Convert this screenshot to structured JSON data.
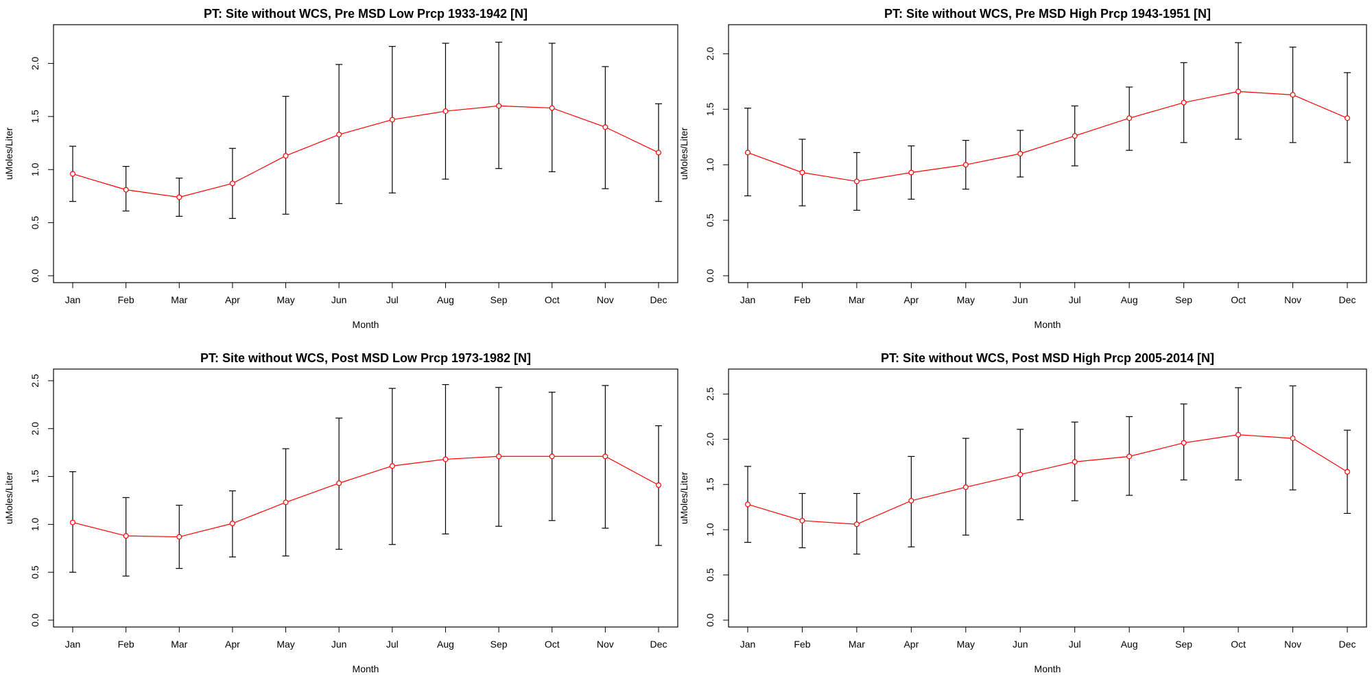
{
  "chart_data": [
    {
      "type": "line",
      "title": "PT: Site without WCS, Pre MSD Low Prcp 1933-1942 [N]",
      "xlabel": "Month",
      "ylabel": "uMoles/Liter",
      "categories": [
        "Jan",
        "Feb",
        "Mar",
        "Apr",
        "May",
        "Jun",
        "Jul",
        "Aug",
        "Sep",
        "Oct",
        "Nov",
        "Dec"
      ],
      "ylim": [
        0,
        2.3
      ],
      "yticks": [
        0.0,
        0.5,
        1.0,
        1.5,
        2.0
      ],
      "ytick_labels": [
        "0.0",
        "0.5",
        "1.0",
        "1.5",
        "2.0"
      ],
      "series": [
        {
          "color": "#ff0000",
          "values": [
            0.96,
            0.81,
            0.74,
            0.87,
            1.13,
            1.33,
            1.47,
            1.55,
            1.6,
            1.58,
            1.4,
            1.16
          ],
          "error_low": [
            0.7,
            0.61,
            0.56,
            0.54,
            0.58,
            0.68,
            0.78,
            0.91,
            1.01,
            0.98,
            0.82,
            0.7
          ],
          "error_high": [
            1.22,
            1.03,
            0.92,
            1.2,
            1.69,
            1.99,
            2.16,
            2.19,
            2.2,
            2.19,
            1.97,
            1.62
          ]
        }
      ],
      "grid": false,
      "legend": "none"
    },
    {
      "type": "line",
      "title": "PT: Site without WCS, Pre MSD High Prcp 1943-1951 [N]",
      "xlabel": "Month",
      "ylabel": "uMoles/Liter",
      "categories": [
        "Jan",
        "Feb",
        "Mar",
        "Apr",
        "May",
        "Jun",
        "Jul",
        "Aug",
        "Sep",
        "Oct",
        "Nov",
        "Dec"
      ],
      "ylim": [
        0,
        2.2
      ],
      "yticks": [
        0.0,
        0.5,
        1.0,
        1.5,
        2.0
      ],
      "ytick_labels": [
        "0.0",
        "0.5",
        "1.0",
        "1.5",
        "2.0"
      ],
      "series": [
        {
          "color": "#ff0000",
          "values": [
            1.11,
            0.93,
            0.85,
            0.93,
            1.0,
            1.1,
            1.26,
            1.42,
            1.56,
            1.66,
            1.63,
            1.42
          ],
          "error_low": [
            0.72,
            0.63,
            0.59,
            0.69,
            0.78,
            0.89,
            0.99,
            1.13,
            1.2,
            1.23,
            1.2,
            1.02
          ],
          "error_high": [
            1.51,
            1.23,
            1.11,
            1.17,
            1.22,
            1.31,
            1.53,
            1.7,
            1.92,
            2.1,
            2.06,
            1.83
          ]
        }
      ],
      "grid": false,
      "legend": "none"
    },
    {
      "type": "line",
      "title": "PT: Site without WCS, Post MSD Low Prcp 1973-1982 [N]",
      "xlabel": "Month",
      "ylabel": "uMoles/Liter",
      "categories": [
        "Jan",
        "Feb",
        "Mar",
        "Apr",
        "May",
        "Jun",
        "Jul",
        "Aug",
        "Sep",
        "Oct",
        "Nov",
        "Dec"
      ],
      "ylim": [
        0,
        2.55
      ],
      "yticks": [
        0.0,
        0.5,
        1.0,
        1.5,
        2.0,
        2.5
      ],
      "ytick_labels": [
        "0.0",
        "0.5",
        "1.0",
        "1.5",
        "2.0",
        "2.5"
      ],
      "series": [
        {
          "color": "#ff0000",
          "values": [
            1.02,
            0.88,
            0.87,
            1.01,
            1.23,
            1.43,
            1.61,
            1.68,
            1.71,
            1.71,
            1.71,
            1.41
          ],
          "error_low": [
            0.5,
            0.46,
            0.54,
            0.66,
            0.67,
            0.74,
            0.79,
            0.9,
            0.98,
            1.04,
            0.96,
            0.78
          ],
          "error_high": [
            1.55,
            1.28,
            1.2,
            1.35,
            1.79,
            2.11,
            2.42,
            2.46,
            2.43,
            2.38,
            2.45,
            2.03
          ]
        }
      ],
      "grid": false,
      "legend": "none"
    },
    {
      "type": "line",
      "title": "PT: Site without WCS, Post MSD High Prcp 2005-2014 [N]",
      "xlabel": "Month",
      "ylabel": "uMoles/Liter",
      "categories": [
        "Jan",
        "Feb",
        "Mar",
        "Apr",
        "May",
        "Jun",
        "Jul",
        "Aug",
        "Sep",
        "Oct",
        "Nov",
        "Dec"
      ],
      "ylim": [
        0,
        2.7
      ],
      "yticks": [
        0.0,
        0.5,
        1.0,
        1.5,
        2.0,
        2.5
      ],
      "ytick_labels": [
        "0.0",
        "0.5",
        "1.0",
        "1.5",
        "2.0",
        "2.5"
      ],
      "series": [
        {
          "color": "#ff0000",
          "values": [
            1.28,
            1.1,
            1.06,
            1.32,
            1.47,
            1.61,
            1.75,
            1.81,
            1.96,
            2.05,
            2.01,
            1.64
          ],
          "error_low": [
            0.86,
            0.8,
            0.73,
            0.81,
            0.94,
            1.11,
            1.32,
            1.38,
            1.55,
            1.55,
            1.44,
            1.18
          ],
          "error_high": [
            1.7,
            1.4,
            1.4,
            1.81,
            2.01,
            2.11,
            2.19,
            2.25,
            2.39,
            2.57,
            2.59,
            2.1
          ]
        }
      ],
      "grid": false,
      "legend": "none"
    }
  ]
}
